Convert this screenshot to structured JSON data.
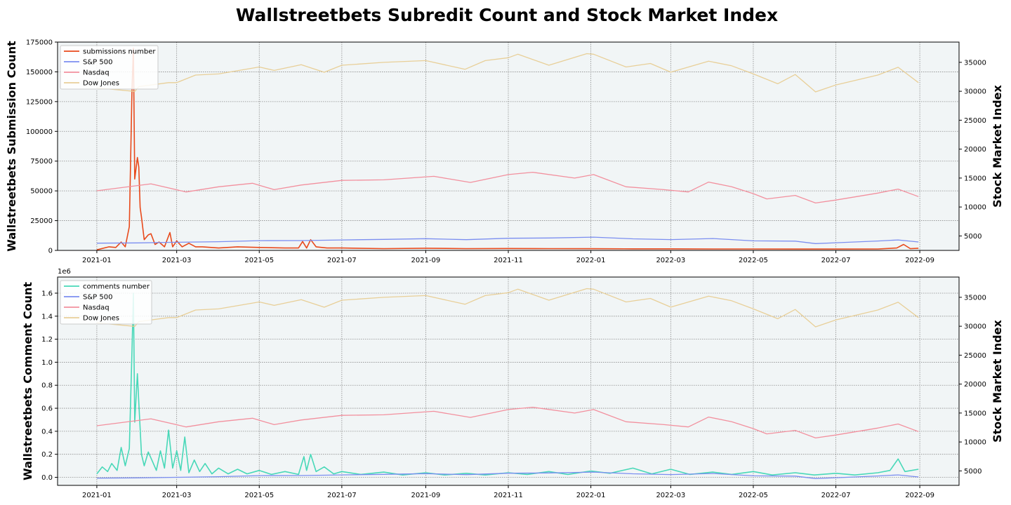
{
  "title": "Wallstreetbets Subredit Count and Stock Market Index",
  "colors": {
    "submissions": "#e8491b",
    "comments": "#48d8b8",
    "sp500": "#7b8ef0",
    "nasdaq": "#f2909e",
    "dow": "#e8cf98",
    "plot_bg": "#f1f5f6"
  },
  "x_ticks": [
    "2021-01",
    "2021-03",
    "2021-05",
    "2021-07",
    "2021-09",
    "2021-11",
    "2022-01",
    "2022-03",
    "2022-05",
    "2022-07",
    "2022-09"
  ],
  "chart_data": [
    {
      "type": "line",
      "name": "submissions-panel",
      "ylabel": "Wallstreetbets Submission Count",
      "ylabel_right": "Stock Market Index",
      "ylim": [
        0,
        175000
      ],
      "y_ticks": [
        0,
        25000,
        50000,
        75000,
        100000,
        125000,
        150000,
        175000
      ],
      "y_tick_labels": [
        "0",
        "25000",
        "50000",
        "75000",
        "100000",
        "125000",
        "150000",
        "175000"
      ],
      "y_offset_label": "",
      "ylim_right": [
        2500,
        38500
      ],
      "y_right_ticks": [
        5000,
        10000,
        15000,
        20000,
        25000,
        30000,
        35000
      ],
      "xlim": [
        "2020-12-03",
        "2022-09-30"
      ],
      "grid": true,
      "legend_position": "upper-left",
      "legend": [
        "submissions number",
        "S&P 500",
        "Nasdaq",
        "Dow Jones"
      ],
      "series": [
        {
          "name": "submissions number",
          "axis": "left",
          "color_key": "submissions",
          "x": [
            "2021-01-01",
            "2021-01-10",
            "2021-01-15",
            "2021-01-19",
            "2021-01-22",
            "2021-01-25",
            "2021-01-27",
            "2021-01-28",
            "2021-01-29",
            "2021-01-31",
            "2021-02-01",
            "2021-02-02",
            "2021-02-03",
            "2021-02-05",
            "2021-02-08",
            "2021-02-10",
            "2021-02-13",
            "2021-02-16",
            "2021-02-20",
            "2021-02-24",
            "2021-02-26",
            "2021-03-01",
            "2021-03-05",
            "2021-03-10",
            "2021-03-15",
            "2021-03-20",
            "2021-04-01",
            "2021-04-15",
            "2021-05-01",
            "2021-05-20",
            "2021-05-30",
            "2021-06-02",
            "2021-06-05",
            "2021-06-08",
            "2021-06-12",
            "2021-06-20",
            "2021-07-01",
            "2021-08-01",
            "2021-09-01",
            "2021-10-01",
            "2021-11-01",
            "2021-12-01",
            "2022-01-01",
            "2022-02-01",
            "2022-03-01",
            "2022-04-01",
            "2022-05-01",
            "2022-06-01",
            "2022-07-01",
            "2022-08-01",
            "2022-08-15",
            "2022-08-20",
            "2022-08-25",
            "2022-08-31"
          ],
          "y": [
            500,
            3000,
            2500,
            7000,
            3000,
            20000,
            135000,
            170000,
            60000,
            78000,
            70000,
            36000,
            28000,
            9000,
            13000,
            14000,
            5000,
            7000,
            3000,
            15000,
            3000,
            8000,
            3000,
            6000,
            3000,
            3000,
            2000,
            3000,
            2500,
            2000,
            2000,
            7500,
            2000,
            9000,
            3000,
            2000,
            2000,
            1500,
            1800,
            1500,
            1600,
            1500,
            1400,
            1300,
            1300,
            1200,
            1200,
            1100,
            1100,
            1200,
            2000,
            5000,
            1500,
            1800
          ]
        },
        {
          "name": "S&P 500",
          "axis": "right",
          "color_key": "sp500",
          "x": [
            "2021-01-01",
            "2021-02-01",
            "2021-03-01",
            "2021-04-01",
            "2021-05-01",
            "2021-06-01",
            "2021-07-01",
            "2021-08-01",
            "2021-09-01",
            "2021-10-01",
            "2021-11-01",
            "2021-12-01",
            "2022-01-03",
            "2022-02-01",
            "2022-03-01",
            "2022-04-01",
            "2022-05-01",
            "2022-06-01",
            "2022-06-16",
            "2022-07-01",
            "2022-08-01",
            "2022-08-16",
            "2022-08-31"
          ],
          "y": [
            3750,
            3800,
            3900,
            4000,
            4180,
            4200,
            4300,
            4400,
            4520,
            4350,
            4600,
            4650,
            4790,
            4500,
            4370,
            4550,
            4150,
            4100,
            3670,
            3820,
            4120,
            4300,
            3950
          ]
        },
        {
          "name": "Nasdaq",
          "axis": "right",
          "color_key": "nasdaq",
          "x": [
            "2021-01-01",
            "2021-02-10",
            "2021-03-08",
            "2021-04-01",
            "2021-04-26",
            "2021-05-12",
            "2021-06-01",
            "2021-07-01",
            "2021-08-01",
            "2021-09-07",
            "2021-10-04",
            "2021-11-01",
            "2021-11-19",
            "2021-12-20",
            "2022-01-03",
            "2022-01-27",
            "2022-02-24",
            "2022-03-14",
            "2022-03-29",
            "2022-04-15",
            "2022-05-01",
            "2022-05-11",
            "2022-06-01",
            "2022-06-16",
            "2022-07-01",
            "2022-08-01",
            "2022-08-16",
            "2022-08-31"
          ],
          "y": [
            12800,
            14000,
            12600,
            13500,
            14100,
            13000,
            13800,
            14600,
            14700,
            15300,
            14250,
            15600,
            16000,
            15000,
            15600,
            13500,
            13000,
            12600,
            14300,
            13500,
            12300,
            11400,
            12000,
            10700,
            11200,
            12400,
            13100,
            11800
          ]
        },
        {
          "name": "Dow Jones",
          "axis": "right",
          "color_key": "dow",
          "x": [
            "2021-01-01",
            "2021-01-29",
            "2021-02-01",
            "2021-02-23",
            "2021-03-01",
            "2021-03-15",
            "2021-04-01",
            "2021-05-01",
            "2021-05-12",
            "2021-06-01",
            "2021-06-18",
            "2021-07-01",
            "2021-08-01",
            "2021-09-01",
            "2021-09-30",
            "2021-10-15",
            "2021-11-01",
            "2021-11-08",
            "2021-12-01",
            "2021-12-29",
            "2022-01-03",
            "2022-01-27",
            "2022-02-14",
            "2022-03-01",
            "2022-03-29",
            "2022-04-15",
            "2022-05-01",
            "2022-05-19",
            "2022-06-01",
            "2022-06-16",
            "2022-07-01",
            "2022-08-01",
            "2022-08-16",
            "2022-08-31"
          ],
          "y": [
            30600,
            29980,
            30800,
            31500,
            31500,
            32800,
            33000,
            34200,
            33600,
            34600,
            33290,
            34500,
            35000,
            35300,
            33800,
            35300,
            35800,
            36400,
            34500,
            36500,
            36400,
            34200,
            34800,
            33300,
            35200,
            34400,
            33000,
            31300,
            32900,
            29900,
            31100,
            32800,
            34150,
            31500
          ]
        }
      ]
    },
    {
      "type": "line",
      "name": "comments-panel",
      "ylabel": "Wallstreetbets Comment Count",
      "ylabel_right": "Stock Market Index",
      "ylim": [
        -70000,
        1740000
      ],
      "y_ticks": [
        0,
        200000,
        400000,
        600000,
        800000,
        1000000,
        1200000,
        1400000,
        1600000
      ],
      "y_tick_labels": [
        "0.0",
        "0.2",
        "0.4",
        "0.6",
        "0.8",
        "1.0",
        "1.2",
        "1.4",
        "1.6"
      ],
      "y_offset_label": "1e6",
      "ylim_right": [
        2500,
        38500
      ],
      "y_right_ticks": [
        5000,
        10000,
        15000,
        20000,
        25000,
        30000,
        35000
      ],
      "xlim": [
        "2020-12-03",
        "2022-09-30"
      ],
      "grid": true,
      "legend_position": "upper-left",
      "legend": [
        "comments number",
        "S&P 500",
        "Nasdaq",
        "Dow Jones"
      ],
      "series": [
        {
          "name": "comments number",
          "axis": "left",
          "color_key": "comments",
          "x": [
            "2021-01-01",
            "2021-01-05",
            "2021-01-09",
            "2021-01-12",
            "2021-01-16",
            "2021-01-19",
            "2021-01-22",
            "2021-01-25",
            "2021-01-27",
            "2021-01-28",
            "2021-01-29",
            "2021-01-31",
            "2021-02-01",
            "2021-02-03",
            "2021-02-05",
            "2021-02-08",
            "2021-02-11",
            "2021-02-14",
            "2021-02-17",
            "2021-02-20",
            "2021-02-23",
            "2021-02-26",
            "2021-03-01",
            "2021-03-04",
            "2021-03-07",
            "2021-03-10",
            "2021-03-14",
            "2021-03-18",
            "2021-03-22",
            "2021-03-27",
            "2021-04-01",
            "2021-04-08",
            "2021-04-15",
            "2021-04-22",
            "2021-05-01",
            "2021-05-10",
            "2021-05-20",
            "2021-05-30",
            "2021-06-03",
            "2021-06-05",
            "2021-06-08",
            "2021-06-12",
            "2021-06-18",
            "2021-06-25",
            "2021-07-01",
            "2021-07-15",
            "2021-08-01",
            "2021-08-15",
            "2021-09-01",
            "2021-09-15",
            "2021-10-01",
            "2021-10-15",
            "2021-11-01",
            "2021-11-15",
            "2021-12-01",
            "2021-12-15",
            "2022-01-01",
            "2022-01-15",
            "2022-02-01",
            "2022-02-15",
            "2022-03-01",
            "2022-03-15",
            "2022-04-01",
            "2022-04-15",
            "2022-05-01",
            "2022-05-15",
            "2022-06-01",
            "2022-06-15",
            "2022-07-01",
            "2022-07-15",
            "2022-08-01",
            "2022-08-10",
            "2022-08-16",
            "2022-08-21",
            "2022-08-26",
            "2022-08-31"
          ],
          "y": [
            30000,
            90000,
            50000,
            120000,
            60000,
            260000,
            100000,
            250000,
            1100000,
            1600000,
            480000,
            900000,
            650000,
            200000,
            100000,
            220000,
            140000,
            60000,
            230000,
            80000,
            410000,
            80000,
            230000,
            60000,
            350000,
            40000,
            150000,
            50000,
            120000,
            30000,
            80000,
            30000,
            70000,
            30000,
            60000,
            25000,
            50000,
            25000,
            180000,
            60000,
            200000,
            50000,
            90000,
            30000,
            50000,
            25000,
            45000,
            20000,
            40000,
            20000,
            35000,
            20000,
            40000,
            25000,
            50000,
            25000,
            55000,
            35000,
            80000,
            30000,
            70000,
            25000,
            45000,
            25000,
            50000,
            20000,
            40000,
            20000,
            35000,
            20000,
            40000,
            60000,
            160000,
            50000,
            60000,
            70000
          ]
        },
        {
          "name": "S&P 500",
          "axis": "right",
          "color_key": "sp500",
          "x": [
            "2021-01-01",
            "2021-02-01",
            "2021-03-01",
            "2021-04-01",
            "2021-05-01",
            "2021-06-01",
            "2021-07-01",
            "2021-08-01",
            "2021-09-01",
            "2021-10-01",
            "2021-11-01",
            "2021-12-01",
            "2022-01-03",
            "2022-02-01",
            "2022-03-01",
            "2022-04-01",
            "2022-05-01",
            "2022-06-01",
            "2022-06-16",
            "2022-07-01",
            "2022-08-01",
            "2022-08-16",
            "2022-08-31"
          ],
          "y": [
            3750,
            3800,
            3900,
            4000,
            4180,
            4200,
            4300,
            4400,
            4520,
            4350,
            4600,
            4650,
            4790,
            4500,
            4370,
            4550,
            4150,
            4100,
            3670,
            3820,
            4120,
            4300,
            3950
          ]
        },
        {
          "name": "Nasdaq",
          "axis": "right",
          "color_key": "nasdaq",
          "x": [
            "2021-01-01",
            "2021-02-10",
            "2021-03-08",
            "2021-04-01",
            "2021-04-26",
            "2021-05-12",
            "2021-06-01",
            "2021-07-01",
            "2021-08-01",
            "2021-09-07",
            "2021-10-04",
            "2021-11-01",
            "2021-11-19",
            "2021-12-20",
            "2022-01-03",
            "2022-01-27",
            "2022-02-24",
            "2022-03-14",
            "2022-03-29",
            "2022-04-15",
            "2022-05-01",
            "2022-05-11",
            "2022-06-01",
            "2022-06-16",
            "2022-07-01",
            "2022-08-01",
            "2022-08-16",
            "2022-08-31"
          ],
          "y": [
            12800,
            14000,
            12600,
            13500,
            14100,
            13000,
            13800,
            14600,
            14700,
            15300,
            14250,
            15600,
            16000,
            15000,
            15600,
            13500,
            13000,
            12600,
            14300,
            13500,
            12300,
            11400,
            12000,
            10700,
            11200,
            12400,
            13100,
            11800
          ]
        },
        {
          "name": "Dow Jones",
          "axis": "right",
          "color_key": "dow",
          "x": [
            "2021-01-01",
            "2021-01-29",
            "2021-02-01",
            "2021-02-23",
            "2021-03-01",
            "2021-03-15",
            "2021-04-01",
            "2021-05-01",
            "2021-05-12",
            "2021-06-01",
            "2021-06-18",
            "2021-07-01",
            "2021-08-01",
            "2021-09-01",
            "2021-09-30",
            "2021-10-15",
            "2021-11-01",
            "2021-11-08",
            "2021-12-01",
            "2021-12-29",
            "2022-01-03",
            "2022-01-27",
            "2022-02-14",
            "2022-03-01",
            "2022-03-29",
            "2022-04-15",
            "2022-05-01",
            "2022-05-19",
            "2022-06-01",
            "2022-06-16",
            "2022-07-01",
            "2022-08-01",
            "2022-08-16",
            "2022-08-31"
          ],
          "y": [
            30600,
            29980,
            30800,
            31500,
            31500,
            32800,
            33000,
            34200,
            33600,
            34600,
            33290,
            34500,
            35000,
            35300,
            33800,
            35300,
            35800,
            36400,
            34500,
            36500,
            36400,
            34200,
            34800,
            33300,
            35200,
            34400,
            33000,
            31300,
            32900,
            29900,
            31100,
            32800,
            34150,
            31500
          ]
        }
      ]
    }
  ]
}
